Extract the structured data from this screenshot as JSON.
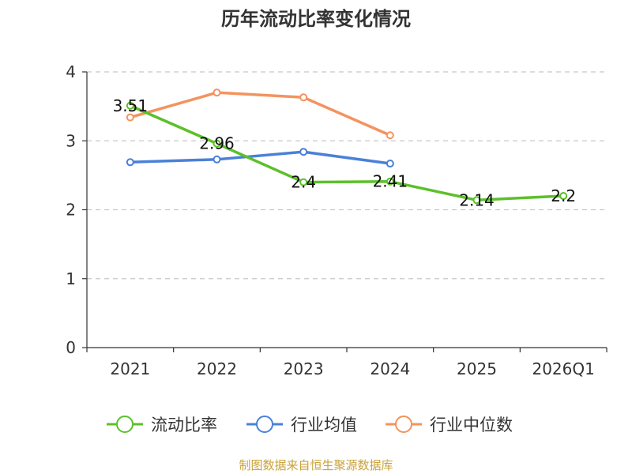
{
  "chart_data": {
    "type": "line",
    "title": "历年流动比率变化情况",
    "categories": [
      "2021",
      "2022",
      "2023",
      "2024",
      "2025",
      "2026Q1"
    ],
    "xlabel": "",
    "ylabel": "",
    "ylim": [
      0,
      4
    ],
    "yticks": [
      "0",
      "1",
      "2",
      "3",
      "4"
    ],
    "grid": true,
    "legend_position": "bottom",
    "series": [
      {
        "name": "流动比率",
        "color": "#5cc02a",
        "values": [
          3.51,
          2.96,
          2.4,
          2.41,
          2.14,
          2.2
        ],
        "labels": [
          "3.51",
          "2.96",
          "2.4",
          "2.41",
          "2.14",
          "2.2"
        ]
      },
      {
        "name": "行业均值",
        "color": "#4a80d8",
        "values": [
          2.69,
          2.73,
          2.84,
          2.67,
          null,
          null
        ]
      },
      {
        "name": "行业中位数",
        "color": "#f4935e",
        "values": [
          3.34,
          3.7,
          3.63,
          3.08,
          null,
          null
        ]
      }
    ]
  },
  "footer": {
    "source": "制图数据来自恒生聚源数据库"
  }
}
